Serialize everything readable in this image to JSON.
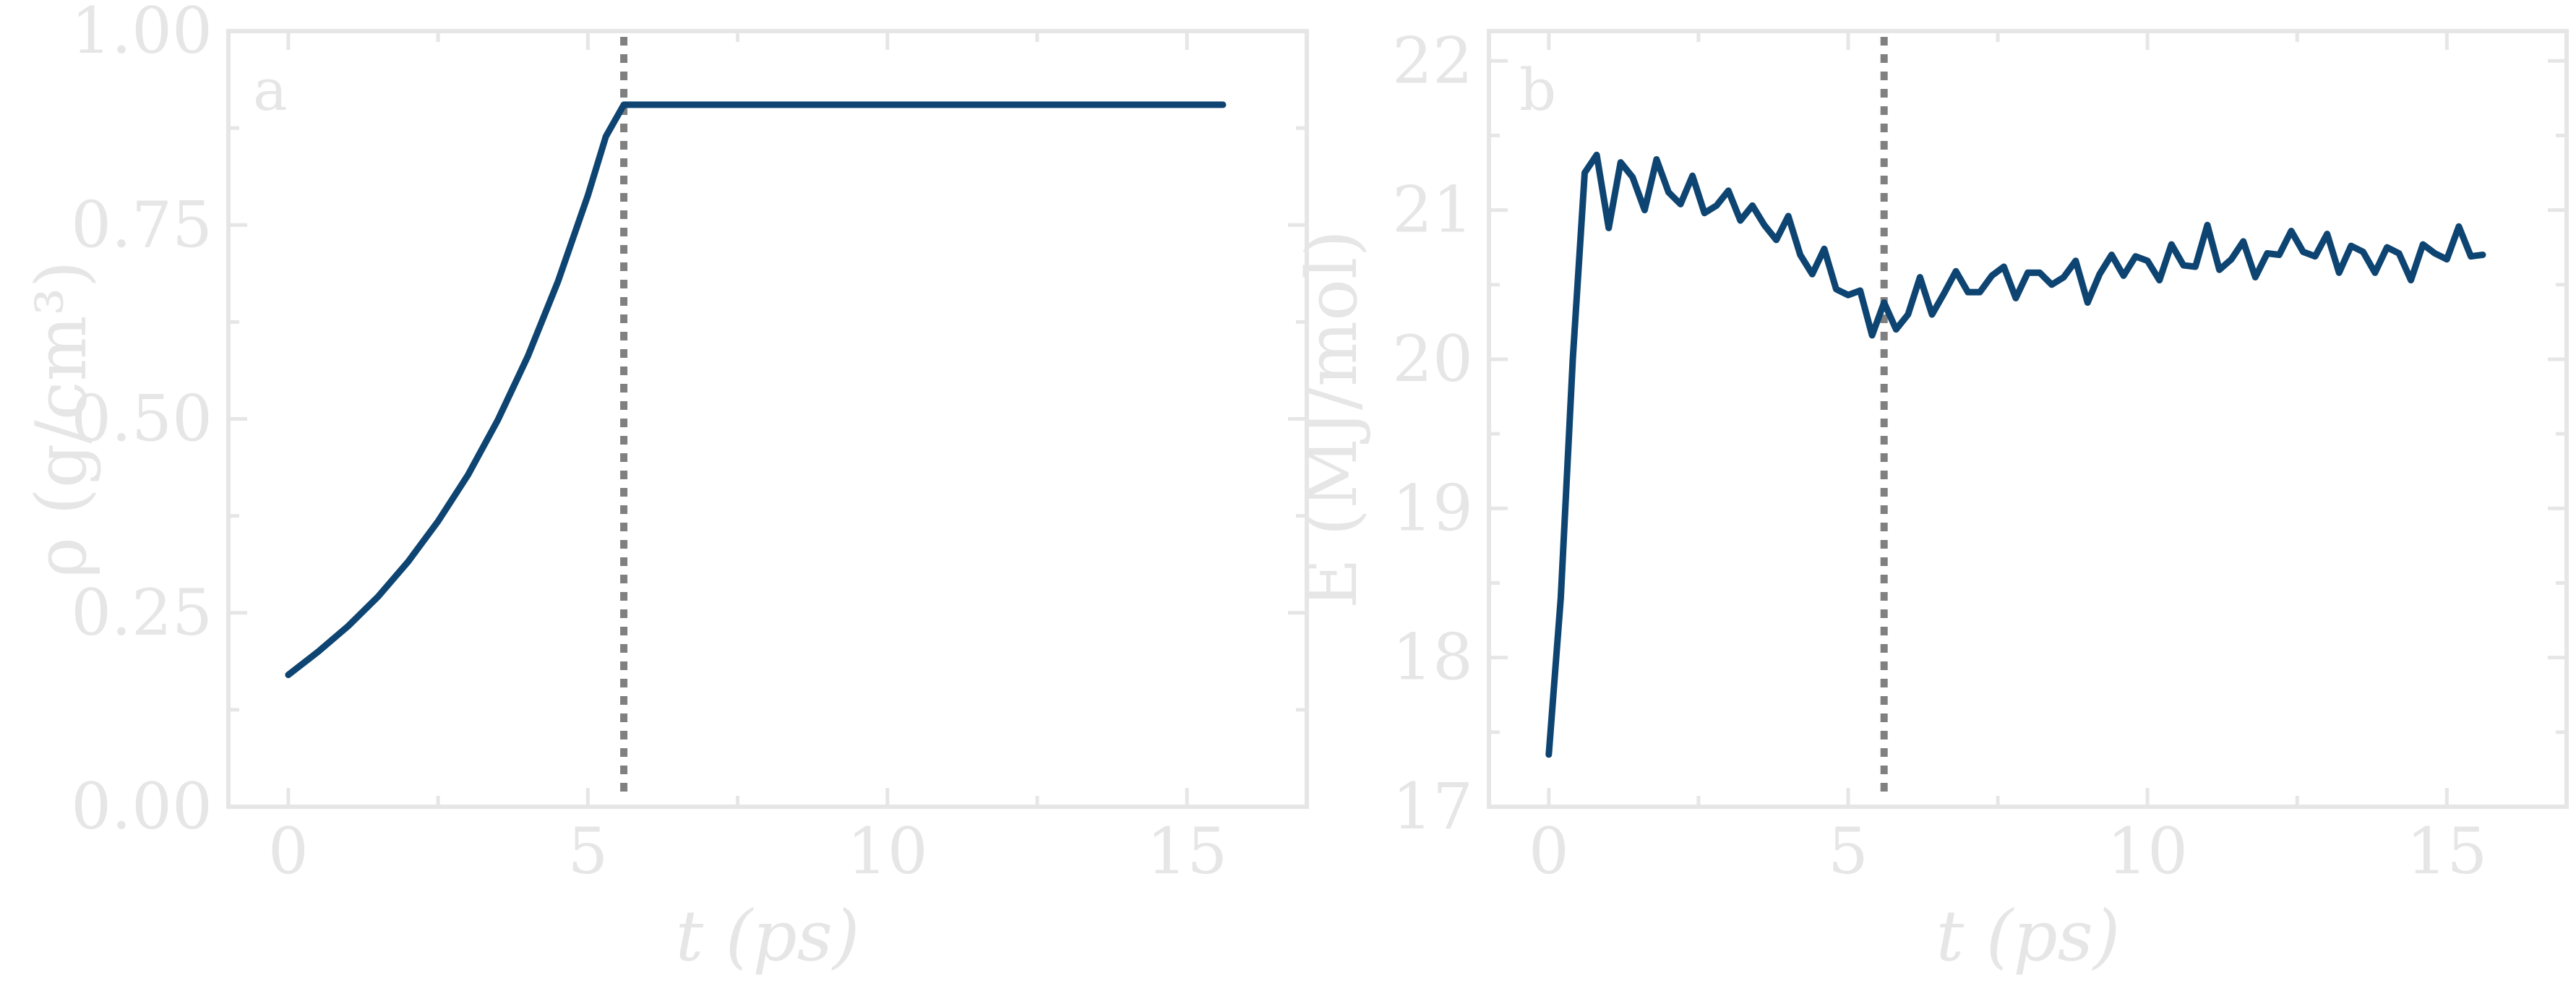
{
  "chart_data": [
    {
      "type": "line",
      "panel_label": "a",
      "xlabel": "t (ps)",
      "ylabel": "ρ (g/cm³)",
      "xlim": [
        -1,
        17
      ],
      "ylim": [
        0,
        1
      ],
      "xticks": [
        0,
        5,
        10,
        15
      ],
      "yticks": [
        0,
        0.25,
        0.5,
        0.75,
        1
      ],
      "ytick_labels": [
        "0.00",
        "0.25",
        "0.50",
        "0.75",
        "1.00"
      ],
      "vline_x": 5.6,
      "line_color": "#0d4471",
      "vline_color": "#808080",
      "series": [
        {
          "x": [
            0,
            0.5,
            1,
            1.5,
            2,
            2.5,
            3,
            3.5,
            4,
            4.5,
            5,
            5.3,
            5.6,
            6,
            8,
            10,
            12,
            14,
            15.6
          ],
          "values": [
            0.17,
            0.2,
            0.233,
            0.271,
            0.316,
            0.368,
            0.428,
            0.499,
            0.581,
            0.677,
            0.788,
            0.864,
            0.905,
            0.905,
            0.905,
            0.905,
            0.905,
            0.905,
            0.905
          ]
        }
      ]
    },
    {
      "type": "line",
      "panel_label": "b",
      "xlabel": "t (ps)",
      "ylabel": "E (MJ/mol)",
      "xlim": [
        -1,
        17
      ],
      "ylim": [
        17,
        22.2
      ],
      "xticks": [
        0,
        5,
        10,
        15
      ],
      "yticks": [
        17,
        18,
        19,
        20,
        21,
        22
      ],
      "ytick_labels": [
        "17",
        "18",
        "19",
        "20",
        "21",
        "22"
      ],
      "vline_x": 5.6,
      "line_color": "#0d4471",
      "vline_color": "#808080",
      "series": [
        {
          "x": [
            0,
            0.2,
            0.4,
            0.6,
            0.8,
            1.0,
            1.2,
            1.4,
            1.6,
            1.8,
            2.0,
            2.2,
            2.4,
            2.6,
            2.8,
            3.0,
            3.2,
            3.4,
            3.6,
            3.8,
            4.0,
            4.2,
            4.4,
            4.6,
            4.8,
            5.0,
            5.2,
            5.4,
            5.6,
            5.8,
            6.0,
            6.2,
            6.4,
            6.6,
            6.8,
            7.0,
            7.2,
            7.4,
            7.6,
            7.8,
            8.0,
            8.2,
            8.4,
            8.6,
            8.8,
            9.0,
            9.2,
            9.4,
            9.6,
            9.8,
            10.0,
            10.2,
            10.4,
            10.6,
            10.8,
            11.0,
            11.2,
            11.4,
            11.6,
            11.8,
            12.0,
            12.2,
            12.4,
            12.6,
            12.8,
            13.0,
            13.2,
            13.4,
            13.6,
            13.8,
            14.0,
            14.2,
            14.4,
            14.6,
            14.8,
            15.0,
            15.2,
            15.4,
            15.6
          ],
          "values": [
            17.35,
            18.4,
            20.0,
            21.25,
            21.37,
            20.88,
            21.32,
            21.22,
            21.0,
            21.34,
            21.12,
            21.04,
            21.23,
            20.98,
            21.03,
            21.13,
            20.93,
            21.03,
            20.9,
            20.8,
            20.96,
            20.7,
            20.57,
            20.74,
            20.47,
            20.43,
            20.46,
            20.16,
            20.38,
            20.2,
            20.3,
            20.55,
            20.3,
            20.44,
            20.59,
            20.45,
            20.45,
            20.56,
            20.62,
            20.41,
            20.58,
            20.58,
            20.5,
            20.55,
            20.66,
            20.38,
            20.57,
            20.7,
            20.56,
            20.69,
            20.66,
            20.53,
            20.77,
            20.63,
            20.62,
            20.9,
            20.6,
            20.67,
            20.79,
            20.55,
            20.71,
            20.7,
            20.86,
            20.72,
            20.69,
            20.84,
            20.58,
            20.76,
            20.72,
            20.58,
            20.75,
            20.71,
            20.53,
            20.77,
            20.71,
            20.67,
            20.89,
            20.69,
            20.7
          ]
        }
      ]
    }
  ]
}
